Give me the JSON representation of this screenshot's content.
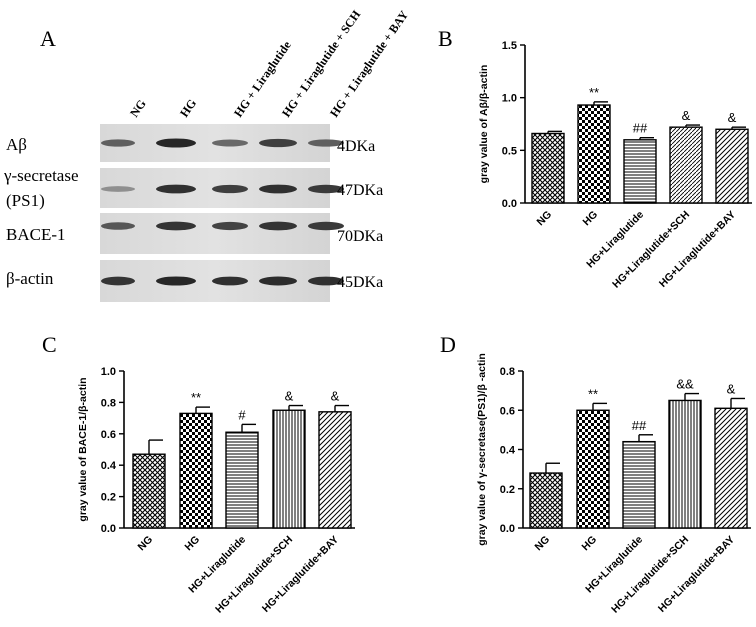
{
  "panel_a": {
    "letter": "A",
    "lanes": [
      "NG",
      "HG",
      "HG + Liraglutide",
      "HG + Liraglutide + SCH",
      "HG + Liraglutide + BAY"
    ],
    "rows": [
      {
        "protein": "Aβ",
        "size": "4DKa",
        "intensity": [
          0.55,
          0.85,
          0.5,
          0.72,
          0.55
        ]
      },
      {
        "protein_line1": "γ-secretase",
        "protein_line2": "(PS1)",
        "size": "47DKa",
        "intensity": [
          0.3,
          0.8,
          0.72,
          0.8,
          0.75
        ]
      },
      {
        "protein": "BACE-1",
        "size": "70DKa",
        "intensity": [
          0.6,
          0.78,
          0.7,
          0.78,
          0.75
        ]
      },
      {
        "protein": "β-actin",
        "size": "45DKa",
        "intensity": [
          0.78,
          0.85,
          0.8,
          0.82,
          0.8
        ]
      }
    ]
  },
  "chart_data": [
    {
      "letter": "B",
      "type": "bar",
      "categories": [
        "NG",
        "HG",
        "HG+Liraglutide",
        "HG+Liraglutide+SCH",
        "HG+Liraglutide+BAY"
      ],
      "values": [
        0.66,
        0.93,
        0.6,
        0.72,
        0.7
      ],
      "errors": [
        0.02,
        0.03,
        0.02,
        0.02,
        0.02
      ],
      "annotations": [
        "",
        "**",
        "##",
        "&",
        "&"
      ],
      "patterns": [
        "crosshatch",
        "checker",
        "hlines",
        "dlines",
        "dlines2"
      ],
      "ylabel": "gray value of Aβ/β-actin",
      "ylim": [
        0,
        1.5
      ],
      "yticks": [
        "0.0",
        "0.5",
        "1.0",
        "1.5"
      ]
    },
    {
      "letter": "C",
      "type": "bar",
      "categories": [
        "NG",
        "HG",
        "HG+Liraglutide",
        "HG+Liraglutide+SCH",
        "HG+Liraglutide+BAY"
      ],
      "values": [
        0.47,
        0.73,
        0.61,
        0.75,
        0.74
      ],
      "errors": [
        0.09,
        0.04,
        0.05,
        0.03,
        0.04
      ],
      "annotations": [
        "",
        "**",
        "#",
        "&",
        "&"
      ],
      "patterns": [
        "crosshatch",
        "checker",
        "hlines",
        "vlines",
        "dlines2"
      ],
      "ylabel": "gray value of BACE-1/β-actin",
      "ylim": [
        0,
        1.0
      ],
      "yticks": [
        "0.0",
        "0.2",
        "0.4",
        "0.6",
        "0.8",
        "1.0"
      ]
    },
    {
      "letter": "D",
      "type": "bar",
      "categories": [
        "NG",
        "HG",
        "HG+Liraglutide",
        "HG+Liraglutide+SCH",
        "HG+Liraglutide+BAY"
      ],
      "values": [
        0.28,
        0.6,
        0.44,
        0.65,
        0.61
      ],
      "errors": [
        0.05,
        0.035,
        0.035,
        0.035,
        0.05
      ],
      "annotations": [
        "",
        "**",
        "##",
        "&&",
        "&"
      ],
      "patterns": [
        "crosshatch",
        "checker",
        "hlines",
        "vlines",
        "dlines2"
      ],
      "ylabel": "gray value of γ-secretase(PS1)/β -actin",
      "ylim": [
        0,
        0.8
      ],
      "yticks": [
        "0.0",
        "0.2",
        "0.4",
        "0.6",
        "0.8"
      ]
    }
  ]
}
